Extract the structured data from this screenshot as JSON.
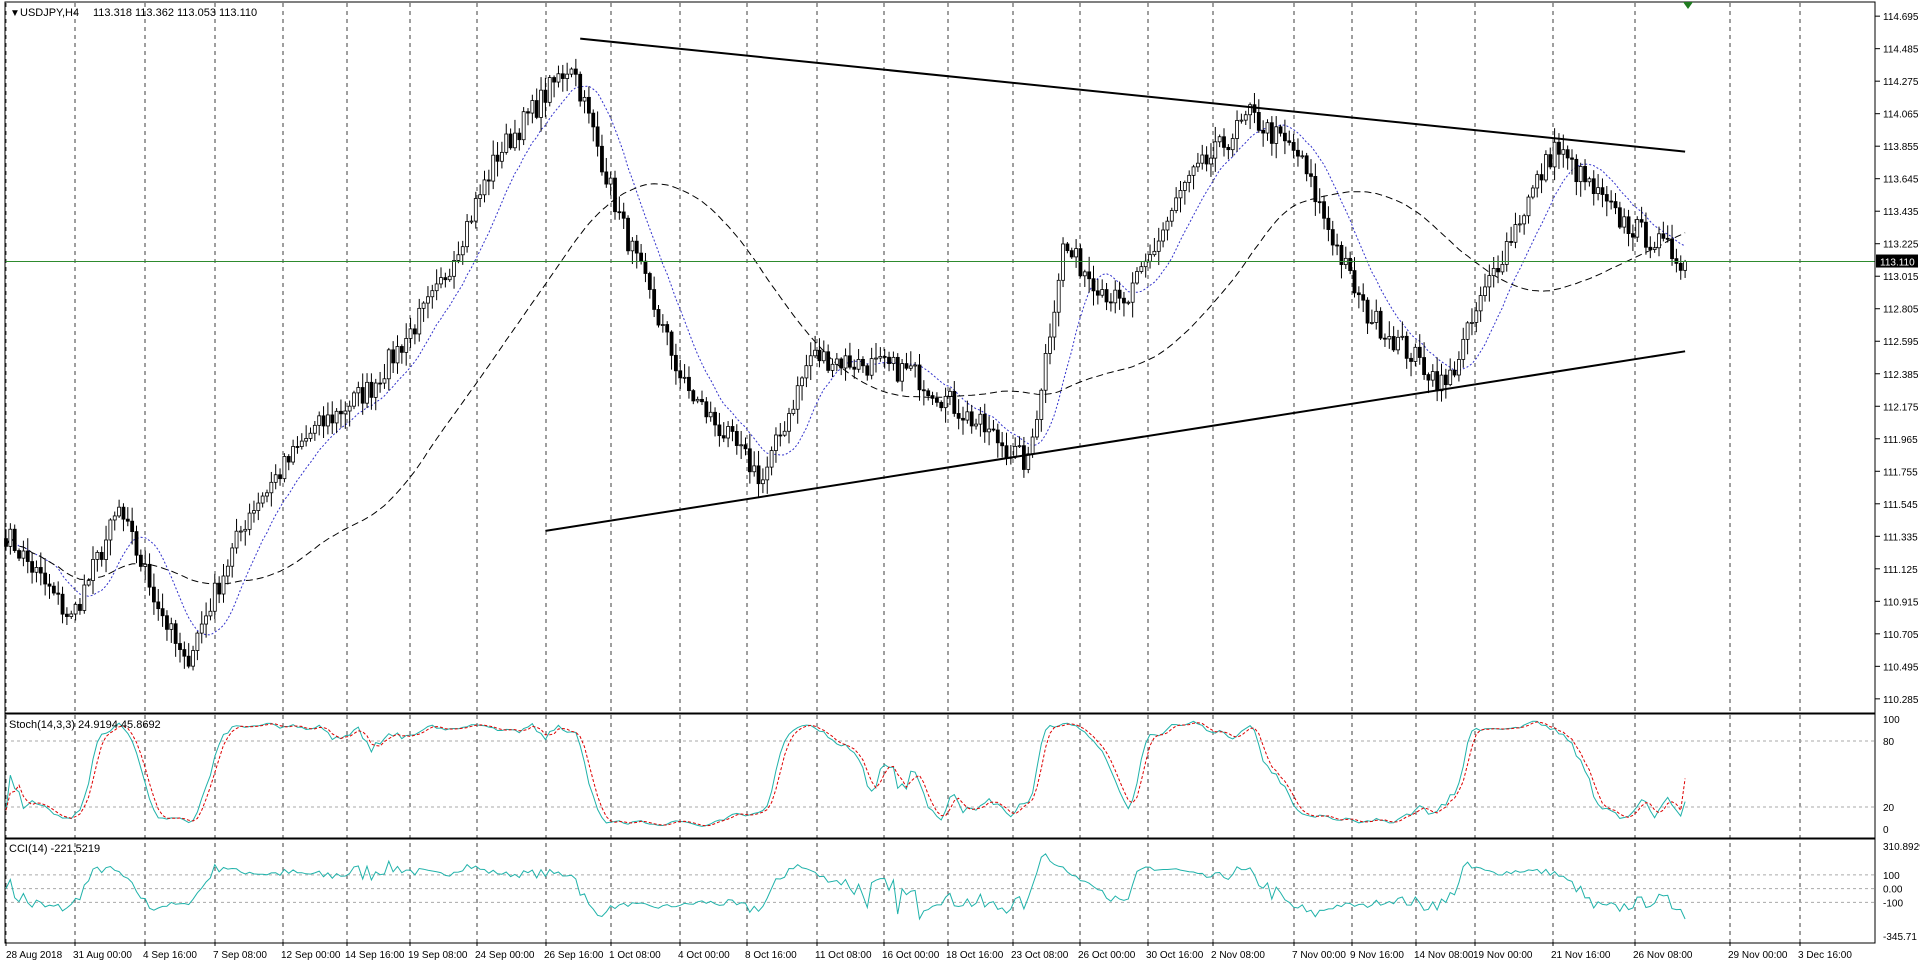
{
  "main_panel": {
    "symbol": "USDJPY,H4",
    "ohlc": "113.318 113.362 113.053 113.110",
    "current_price": "113.110",
    "price_ticks": [
      "114.695",
      "114.485",
      "114.275",
      "114.065",
      "113.855",
      "113.645",
      "113.435",
      "113.225",
      "113.015",
      "112.805",
      "112.595",
      "112.385",
      "112.175",
      "111.965",
      "111.755",
      "111.545",
      "111.335",
      "111.125",
      "110.915",
      "110.705",
      "110.495",
      "110.285"
    ]
  },
  "stoch_panel": {
    "label": "Stoch(14,3,3) 24.9194 45.8692",
    "ticks": [
      "100",
      "80",
      "20",
      "0"
    ]
  },
  "cci_panel": {
    "label": "CCI(14) -221.5219",
    "ticks": [
      "310.8929",
      "100",
      "0.00",
      "-100",
      "-345.71"
    ]
  },
  "time_axis": {
    "labels": [
      "28 Aug 2018",
      "31 Aug 00:00",
      "4 Sep 16:00",
      "7 Sep 08:00",
      "12 Sep 00:00",
      "14 Sep 16:00",
      "19 Sep 08:00",
      "24 Sep 00:00",
      "26 Sep 16:00",
      "1 Oct 08:00",
      "4 Oct 00:00",
      "8 Oct 16:00",
      "11 Oct 08:00",
      "16 Oct 00:00",
      "18 Oct 16:00",
      "23 Oct 08:00",
      "26 Oct 00:00",
      "30 Oct 16:00",
      "2 Nov 08:00",
      "7 Nov 00:00",
      "9 Nov 16:00",
      "14 Nov 08:00",
      "19 Nov 00:00",
      "21 Nov 16:00",
      "26 Nov 08:00",
      "29 Nov 00:00",
      "3 Dec 16:00"
    ]
  },
  "colors": {
    "background": "#ffffff",
    "bull_candle": "#ffffff",
    "bear_candle": "#000000",
    "current_price_line": "#2e8b2e",
    "fast_ma": "#3333cc",
    "slow_ma": "#000000",
    "stoch_main": "#20b2aa",
    "stoch_signal": "#dd0000",
    "cci": "#20b2aa",
    "grid": "#000000"
  },
  "chart_data": {
    "type": "candlestick",
    "timeframe": "H4",
    "ylim": [
      110.285,
      114.695
    ],
    "anchors_x_bar": [
      0,
      15,
      26,
      41,
      56,
      70,
      84,
      99,
      113,
      130,
      141,
      156,
      174,
      185,
      208,
      235,
      243,
      257,
      271,
      286,
      297,
      312,
      331,
      342,
      356,
      370,
      386
    ],
    "close_anchors": [
      111.35,
      110.8,
      111.5,
      110.5,
      111.5,
      112.0,
      112.3,
      112.9,
      113.8,
      114.4,
      113.4,
      112.3,
      111.7,
      112.5,
      112.4,
      111.8,
      113.2,
      112.8,
      113.6,
      114.05,
      113.8,
      112.8,
      112.3,
      113.05,
      113.85,
      113.4,
      113.11
    ],
    "trendlines": [
      {
        "from": {
          "bar": 132,
          "price": 114.55
        },
        "to": {
          "bar": 386,
          "price": 113.82
        }
      },
      {
        "from": {
          "bar": 124,
          "price": 111.37
        },
        "to": {
          "bar": 386,
          "price": 112.53
        }
      }
    ],
    "stochastic": {
      "k": 24.9194,
      "d": 45.8692,
      "levels": [
        80,
        20
      ]
    },
    "cci": {
      "value": -221.5219,
      "levels": [
        100,
        -100
      ]
    }
  }
}
